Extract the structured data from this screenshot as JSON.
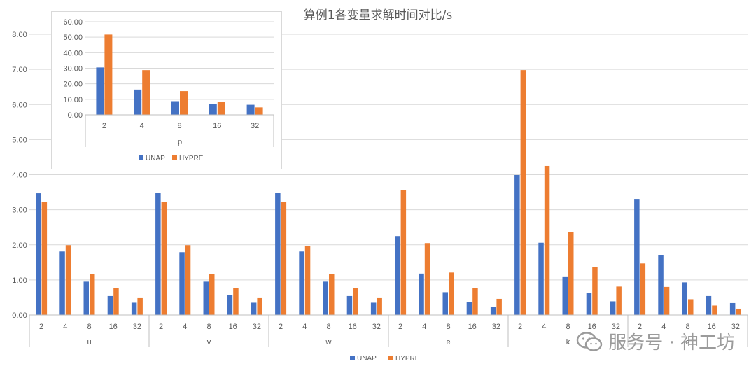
{
  "chart_data": [
    {
      "type": "bar",
      "title": "算例1各变量求解时间对比/s",
      "groups": [
        "u",
        "v",
        "w",
        "e",
        "k",
        "s"
      ],
      "categories": [
        "2",
        "4",
        "8",
        "16",
        "32"
      ],
      "ylim": [
        0,
        8
      ],
      "yticks": [
        "0.00",
        "1.00",
        "2.00",
        "3.00",
        "4.00",
        "5.00",
        "6.00",
        "7.00",
        "8.00"
      ],
      "grid": true,
      "legend_position": "bottom",
      "series": [
        {
          "name": "UNAP",
          "color": "#4472C4",
          "values": [
            [
              3.47,
              1.81,
              0.95,
              0.54,
              0.35
            ],
            [
              3.49,
              1.79,
              0.95,
              0.56,
              0.35
            ],
            [
              3.49,
              1.81,
              0.95,
              0.54,
              0.35
            ],
            [
              2.25,
              1.18,
              0.65,
              0.37,
              0.23
            ],
            [
              3.99,
              2.06,
              1.08,
              0.62,
              0.39
            ],
            [
              3.31,
              1.71,
              0.93,
              0.54,
              0.34
            ]
          ]
        },
        {
          "name": "HYPRE",
          "color": "#ED7D31",
          "values": [
            [
              3.23,
              1.99,
              1.17,
              0.76,
              0.48
            ],
            [
              3.23,
              1.99,
              1.17,
              0.76,
              0.48
            ],
            [
              3.23,
              1.97,
              1.17,
              0.76,
              0.48
            ],
            [
              3.57,
              2.05,
              1.21,
              0.76,
              0.46
            ],
            [
              6.98,
              4.25,
              2.36,
              1.37,
              0.81
            ],
            [
              1.47,
              0.8,
              0.45,
              0.27,
              0.18
            ]
          ]
        }
      ]
    },
    {
      "type": "bar",
      "title": "",
      "xlabel": "p",
      "categories": [
        "2",
        "4",
        "8",
        "16",
        "32"
      ],
      "ylim": [
        0,
        60
      ],
      "yticks": [
        "0.00",
        "10.00",
        "20.00",
        "30.00",
        "40.00",
        "50.00",
        "60.00"
      ],
      "grid": true,
      "legend_position": "bottom",
      "series": [
        {
          "name": "UNAP",
          "color": "#4472C4",
          "values": [
            30.5,
            16.3,
            8.8,
            6.8,
            6.5
          ]
        },
        {
          "name": "HYPRE",
          "color": "#ED7D31",
          "values": [
            51.7,
            28.8,
            15.3,
            8.3,
            4.8
          ]
        }
      ]
    }
  ],
  "watermark": {
    "text": "服务号 · 神工坊",
    "icon": "wechat-icon"
  }
}
